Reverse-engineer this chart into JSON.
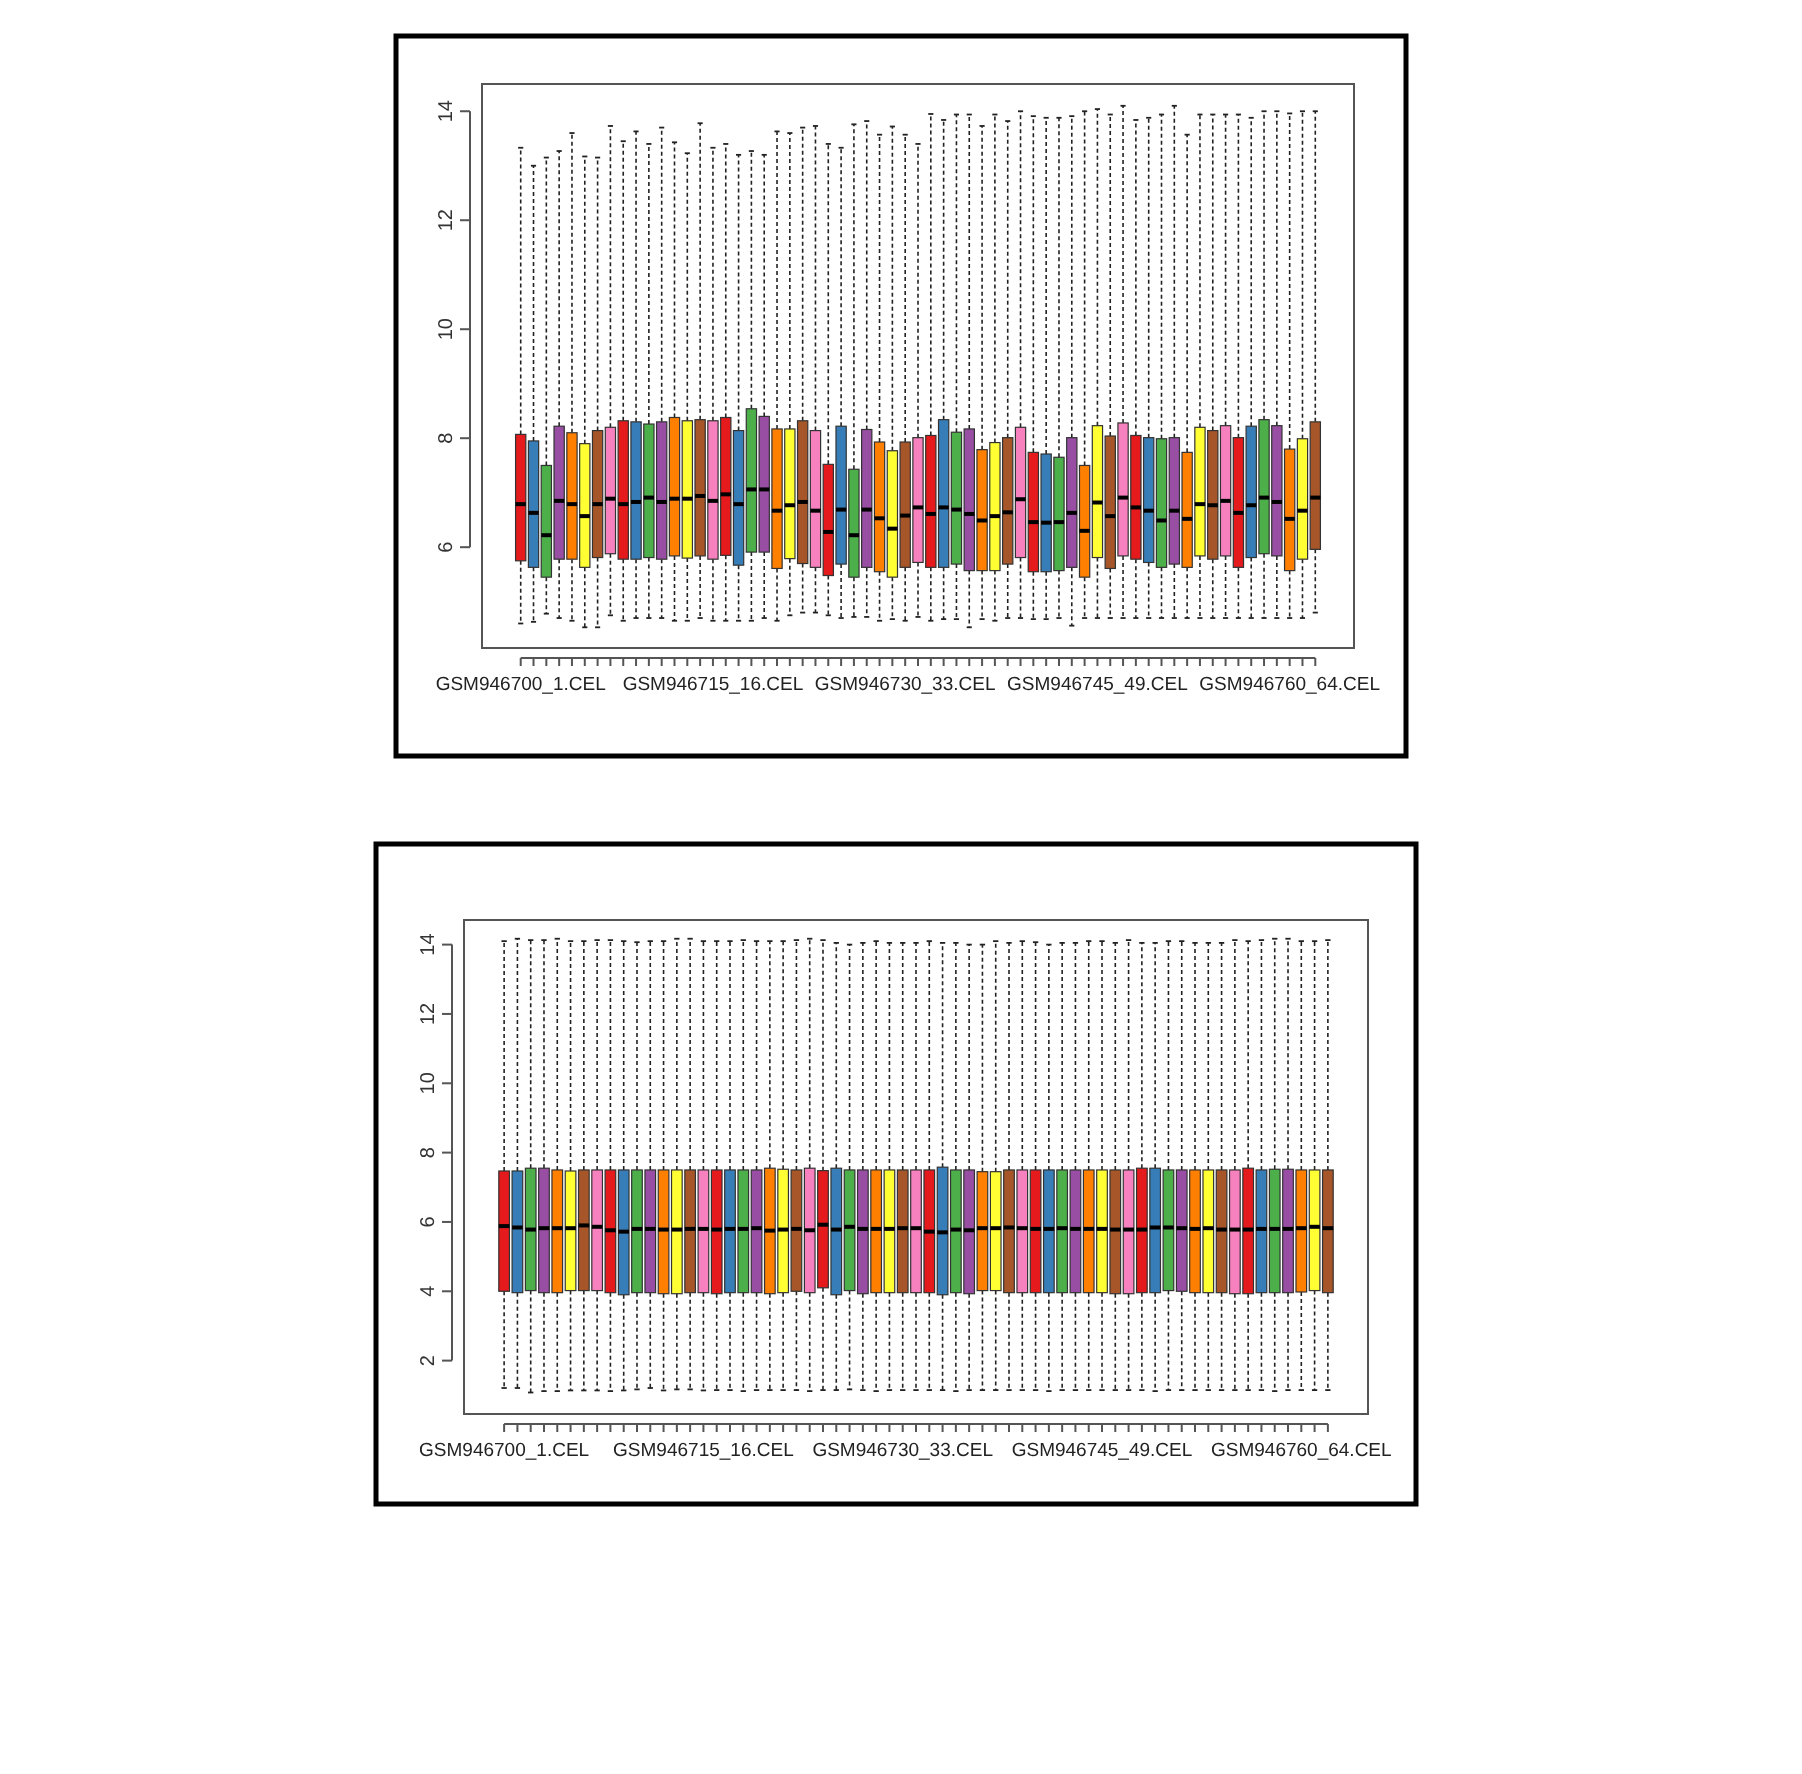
{
  "chart_data": [
    {
      "type": "box",
      "categories": [
        "GSM946700_1.CEL",
        null,
        null,
        null,
        null,
        null,
        null,
        null,
        null,
        null,
        null,
        null,
        null,
        null,
        null,
        "GSM946715_16.CEL",
        null,
        null,
        null,
        null,
        null,
        null,
        null,
        null,
        null,
        null,
        null,
        null,
        null,
        null,
        "GSM946730_33.CEL",
        null,
        null,
        null,
        null,
        null,
        null,
        null,
        null,
        null,
        null,
        null,
        null,
        null,
        null,
        "GSM946745_49.CEL",
        null,
        null,
        null,
        null,
        null,
        null,
        null,
        null,
        null,
        null,
        null,
        null,
        null,
        null,
        "GSM946760_64.CEL",
        null,
        null
      ],
      "colors": [
        "#e41a1c",
        "#377eb8",
        "#4daf4a",
        "#984ea3",
        "#ff7f00",
        "#ffff33",
        "#a65628",
        "#f781bf",
        "#e41a1c",
        "#377eb8",
        "#4daf4a",
        "#984ea3",
        "#ff7f00",
        "#ffff33",
        "#a65628",
        "#f781bf",
        "#e41a1c",
        "#377eb8",
        "#4daf4a",
        "#984ea3",
        "#ff7f00",
        "#ffff33",
        "#a65628",
        "#f781bf",
        "#e41a1c",
        "#377eb8",
        "#4daf4a",
        "#984ea3",
        "#ff7f00",
        "#ffff33",
        "#a65628",
        "#f781bf",
        "#e41a1c",
        "#377eb8",
        "#4daf4a",
        "#984ea3",
        "#ff7f00",
        "#ffff33",
        "#a65628",
        "#f781bf",
        "#e41a1c",
        "#377eb8",
        "#4daf4a",
        "#984ea3",
        "#ff7f00",
        "#ffff33",
        "#a65628",
        "#f781bf",
        "#e41a1c",
        "#377eb8",
        "#4daf4a",
        "#984ea3",
        "#ff7f00",
        "#ffff33",
        "#a65628",
        "#f781bf",
        "#e41a1c",
        "#377eb8",
        "#4daf4a",
        "#984ea3",
        "#ff7f00",
        "#ffff33",
        "#a65628"
      ],
      "boxes": [
        {
          "low": 4.6,
          "q1": 5.75,
          "median": 6.79,
          "q3": 8.07,
          "high": 13.33
        },
        {
          "low": 4.63,
          "q1": 5.63,
          "median": 6.63,
          "q3": 7.95,
          "high": 13.0
        },
        {
          "low": 4.78,
          "q1": 5.45,
          "median": 6.22,
          "q3": 7.5,
          "high": 13.15
        },
        {
          "low": 4.7,
          "q1": 5.78,
          "median": 6.85,
          "q3": 8.22,
          "high": 13.27
        },
        {
          "low": 4.65,
          "q1": 5.78,
          "median": 6.79,
          "q3": 8.1,
          "high": 13.6
        },
        {
          "low": 4.53,
          "q1": 5.63,
          "median": 6.57,
          "q3": 7.9,
          "high": 13.17
        },
        {
          "low": 4.53,
          "q1": 5.81,
          "median": 6.79,
          "q3": 8.14,
          "high": 13.15
        },
        {
          "low": 4.75,
          "q1": 5.88,
          "median": 6.89,
          "q3": 8.2,
          "high": 13.73
        },
        {
          "low": 4.65,
          "q1": 5.78,
          "median": 6.79,
          "q3": 8.32,
          "high": 13.45
        },
        {
          "low": 4.7,
          "q1": 5.78,
          "median": 6.83,
          "q3": 8.3,
          "high": 13.63
        },
        {
          "low": 4.7,
          "q1": 5.81,
          "median": 6.91,
          "q3": 8.26,
          "high": 13.4
        },
        {
          "low": 4.7,
          "q1": 5.78,
          "median": 6.83,
          "q3": 8.3,
          "high": 13.7
        },
        {
          "low": 4.65,
          "q1": 5.84,
          "median": 6.89,
          "q3": 8.38,
          "high": 13.43
        },
        {
          "low": 4.65,
          "q1": 5.8,
          "median": 6.89,
          "q3": 8.32,
          "high": 13.23
        },
        {
          "low": 4.7,
          "q1": 5.84,
          "median": 6.94,
          "q3": 8.34,
          "high": 13.78
        },
        {
          "low": 4.65,
          "q1": 5.78,
          "median": 6.85,
          "q3": 8.32,
          "high": 13.33
        },
        {
          "low": 4.65,
          "q1": 5.85,
          "median": 6.97,
          "q3": 8.38,
          "high": 13.4
        },
        {
          "low": 4.65,
          "q1": 5.67,
          "median": 6.79,
          "q3": 8.14,
          "high": 13.2
        },
        {
          "low": 4.65,
          "q1": 5.91,
          "median": 7.06,
          "q3": 8.54,
          "high": 13.27
        },
        {
          "low": 4.7,
          "q1": 5.91,
          "median": 7.06,
          "q3": 8.4,
          "high": 13.2
        },
        {
          "low": 4.65,
          "q1": 5.61,
          "median": 6.67,
          "q3": 8.17,
          "high": 13.63
        },
        {
          "low": 4.75,
          "q1": 5.79,
          "median": 6.77,
          "q3": 8.17,
          "high": 13.6
        },
        {
          "low": 4.8,
          "q1": 5.7,
          "median": 6.83,
          "q3": 8.32,
          "high": 13.7
        },
        {
          "low": 4.8,
          "q1": 5.63,
          "median": 6.67,
          "q3": 8.14,
          "high": 13.73
        },
        {
          "low": 4.75,
          "q1": 5.48,
          "median": 6.28,
          "q3": 7.52,
          "high": 13.4
        },
        {
          "low": 4.7,
          "q1": 5.69,
          "median": 6.69,
          "q3": 8.22,
          "high": 13.33
        },
        {
          "low": 4.72,
          "q1": 5.45,
          "median": 6.22,
          "q3": 7.43,
          "high": 13.76
        },
        {
          "low": 4.72,
          "q1": 5.63,
          "median": 6.69,
          "q3": 8.16,
          "high": 13.82
        },
        {
          "low": 4.65,
          "q1": 5.55,
          "median": 6.53,
          "q3": 7.93,
          "high": 13.57
        },
        {
          "low": 4.68,
          "q1": 5.45,
          "median": 6.34,
          "q3": 7.77,
          "high": 13.72
        },
        {
          "low": 4.65,
          "q1": 5.63,
          "median": 6.58,
          "q3": 7.93,
          "high": 13.57
        },
        {
          "low": 4.72,
          "q1": 5.72,
          "median": 6.73,
          "q3": 8.01,
          "high": 13.4
        },
        {
          "low": 4.65,
          "q1": 5.63,
          "median": 6.61,
          "q3": 8.05,
          "high": 13.95
        },
        {
          "low": 4.68,
          "q1": 5.63,
          "median": 6.73,
          "q3": 8.34,
          "high": 13.84
        },
        {
          "low": 4.68,
          "q1": 5.69,
          "median": 6.69,
          "q3": 8.11,
          "high": 13.94
        },
        {
          "low": 4.53,
          "q1": 5.57,
          "median": 6.61,
          "q3": 8.17,
          "high": 13.94
        },
        {
          "low": 4.68,
          "q1": 5.57,
          "median": 6.49,
          "q3": 7.79,
          "high": 13.73
        },
        {
          "low": 4.65,
          "q1": 5.57,
          "median": 6.57,
          "q3": 7.92,
          "high": 13.94
        },
        {
          "low": 4.7,
          "q1": 5.69,
          "median": 6.64,
          "q3": 8.01,
          "high": 13.82
        },
        {
          "low": 4.7,
          "q1": 5.81,
          "median": 6.88,
          "q3": 8.2,
          "high": 14.0
        },
        {
          "low": 4.68,
          "q1": 5.55,
          "median": 6.46,
          "q3": 7.74,
          "high": 13.91
        },
        {
          "low": 4.68,
          "q1": 5.55,
          "median": 6.45,
          "q3": 7.71,
          "high": 13.88
        },
        {
          "low": 4.7,
          "q1": 5.57,
          "median": 6.46,
          "q3": 7.65,
          "high": 13.88
        },
        {
          "low": 4.56,
          "q1": 5.63,
          "median": 6.63,
          "q3": 8.01,
          "high": 13.91
        },
        {
          "low": 4.7,
          "q1": 5.45,
          "median": 6.3,
          "q3": 7.5,
          "high": 14.0
        },
        {
          "low": 4.7,
          "q1": 5.81,
          "median": 6.82,
          "q3": 8.23,
          "high": 14.04
        },
        {
          "low": 4.7,
          "q1": 5.61,
          "median": 6.57,
          "q3": 8.04,
          "high": 13.94
        },
        {
          "low": 4.7,
          "q1": 5.84,
          "median": 6.91,
          "q3": 8.28,
          "high": 14.1
        },
        {
          "low": 4.7,
          "q1": 5.78,
          "median": 6.73,
          "q3": 8.05,
          "high": 13.84
        },
        {
          "low": 4.7,
          "q1": 5.72,
          "median": 6.67,
          "q3": 8.01,
          "high": 13.88
        },
        {
          "low": 4.7,
          "q1": 5.63,
          "median": 6.49,
          "q3": 7.99,
          "high": 13.94
        },
        {
          "low": 4.7,
          "q1": 5.69,
          "median": 6.67,
          "q3": 8.01,
          "high": 14.1
        },
        {
          "low": 4.7,
          "q1": 5.63,
          "median": 6.52,
          "q3": 7.74,
          "high": 13.57
        },
        {
          "low": 4.7,
          "q1": 5.84,
          "median": 6.79,
          "q3": 8.2,
          "high": 13.94
        },
        {
          "low": 4.7,
          "q1": 5.78,
          "median": 6.77,
          "q3": 8.14,
          "high": 13.94
        },
        {
          "low": 4.7,
          "q1": 5.84,
          "median": 6.85,
          "q3": 8.23,
          "high": 13.94
        },
        {
          "low": 4.7,
          "q1": 5.63,
          "median": 6.63,
          "q3": 8.01,
          "high": 13.94
        },
        {
          "low": 4.7,
          "q1": 5.81,
          "median": 6.77,
          "q3": 8.22,
          "high": 13.88
        },
        {
          "low": 4.7,
          "q1": 5.88,
          "median": 6.91,
          "q3": 8.34,
          "high": 14.0
        },
        {
          "low": 4.7,
          "q1": 5.84,
          "median": 6.83,
          "q3": 8.23,
          "high": 14.0
        },
        {
          "low": 4.7,
          "q1": 5.57,
          "median": 6.52,
          "q3": 7.8,
          "high": 13.96
        },
        {
          "low": 4.7,
          "q1": 5.78,
          "median": 6.67,
          "q3": 7.99,
          "high": 14.0
        },
        {
          "low": 4.8,
          "q1": 5.96,
          "median": 6.91,
          "q3": 8.3,
          "high": 14.0
        }
      ],
      "ylim": [
        4.15,
        14.5
      ],
      "yticks": [
        6,
        8,
        10,
        12,
        14
      ]
    },
    {
      "type": "box",
      "categories": [
        "GSM946700_1.CEL",
        null,
        null,
        null,
        null,
        null,
        null,
        null,
        null,
        null,
        null,
        null,
        null,
        null,
        null,
        "GSM946715_16.CEL",
        null,
        null,
        null,
        null,
        null,
        null,
        null,
        null,
        null,
        null,
        null,
        null,
        null,
        null,
        "GSM946730_33.CEL",
        null,
        null,
        null,
        null,
        null,
        null,
        null,
        null,
        null,
        null,
        null,
        null,
        null,
        null,
        "GSM946745_49.CEL",
        null,
        null,
        null,
        null,
        null,
        null,
        null,
        null,
        null,
        null,
        null,
        null,
        null,
        null,
        "GSM946760_64.CEL",
        null,
        null
      ],
      "colors": [
        "#e41a1c",
        "#377eb8",
        "#4daf4a",
        "#984ea3",
        "#ff7f00",
        "#ffff33",
        "#a65628",
        "#f781bf",
        "#e41a1c",
        "#377eb8",
        "#4daf4a",
        "#984ea3",
        "#ff7f00",
        "#ffff33",
        "#a65628",
        "#f781bf",
        "#e41a1c",
        "#377eb8",
        "#4daf4a",
        "#984ea3",
        "#ff7f00",
        "#ffff33",
        "#a65628",
        "#f781bf",
        "#e41a1c",
        "#377eb8",
        "#4daf4a",
        "#984ea3",
        "#ff7f00",
        "#ffff33",
        "#a65628",
        "#f781bf",
        "#e41a1c",
        "#377eb8",
        "#4daf4a",
        "#984ea3",
        "#ff7f00",
        "#ffff33",
        "#a65628",
        "#f781bf",
        "#e41a1c",
        "#377eb8",
        "#4daf4a",
        "#984ea3",
        "#ff7f00",
        "#ffff33",
        "#a65628",
        "#f781bf",
        "#e41a1c",
        "#377eb8",
        "#4daf4a",
        "#984ea3",
        "#ff7f00",
        "#ffff33",
        "#a65628",
        "#f781bf",
        "#e41a1c",
        "#377eb8",
        "#4daf4a",
        "#984ea3",
        "#ff7f00",
        "#ffff33",
        "#a65628"
      ],
      "boxes": [
        {
          "low": 1.21,
          "q1": 4.0,
          "median": 5.88,
          "q3": 7.47,
          "high": 14.1
        },
        {
          "low": 1.21,
          "q1": 3.96,
          "median": 5.84,
          "q3": 7.47,
          "high": 14.17
        },
        {
          "low": 1.08,
          "q1": 4.02,
          "median": 5.78,
          "q3": 7.55,
          "high": 14.13
        },
        {
          "low": 1.12,
          "q1": 3.96,
          "median": 5.82,
          "q3": 7.55,
          "high": 14.13
        },
        {
          "low": 1.12,
          "q1": 3.96,
          "median": 5.82,
          "q3": 7.5,
          "high": 14.17
        },
        {
          "low": 1.14,
          "q1": 4.02,
          "median": 5.82,
          "q3": 7.47,
          "high": 14.1
        },
        {
          "low": 1.14,
          "q1": 4.02,
          "median": 5.9,
          "q3": 7.5,
          "high": 14.1
        },
        {
          "low": 1.14,
          "q1": 4.02,
          "median": 5.86,
          "q3": 7.5,
          "high": 14.13
        },
        {
          "low": 1.12,
          "q1": 3.96,
          "median": 5.76,
          "q3": 7.5,
          "high": 14.13
        },
        {
          "low": 1.14,
          "q1": 3.9,
          "median": 5.72,
          "q3": 7.5,
          "high": 14.1
        },
        {
          "low": 1.17,
          "q1": 3.96,
          "median": 5.8,
          "q3": 7.5,
          "high": 14.07
        },
        {
          "low": 1.21,
          "q1": 3.96,
          "median": 5.8,
          "q3": 7.5,
          "high": 14.1
        },
        {
          "low": 1.14,
          "q1": 3.93,
          "median": 5.78,
          "q3": 7.5,
          "high": 14.1
        },
        {
          "low": 1.17,
          "q1": 3.93,
          "median": 5.78,
          "q3": 7.5,
          "high": 14.17
        },
        {
          "low": 1.17,
          "q1": 3.96,
          "median": 5.8,
          "q3": 7.5,
          "high": 14.17
        },
        {
          "low": 1.14,
          "q1": 3.96,
          "median": 5.8,
          "q3": 7.5,
          "high": 14.1
        },
        {
          "low": 1.15,
          "q1": 3.93,
          "median": 5.78,
          "q3": 7.5,
          "high": 14.1
        },
        {
          "low": 1.15,
          "q1": 3.96,
          "median": 5.8,
          "q3": 7.5,
          "high": 14.1
        },
        {
          "low": 1.12,
          "q1": 3.96,
          "median": 5.8,
          "q3": 7.5,
          "high": 14.13
        },
        {
          "low": 1.15,
          "q1": 3.96,
          "median": 5.82,
          "q3": 7.5,
          "high": 14.1
        },
        {
          "low": 1.15,
          "q1": 3.93,
          "median": 5.75,
          "q3": 7.55,
          "high": 14.1
        },
        {
          "low": 1.15,
          "q1": 3.96,
          "median": 5.78,
          "q3": 7.52,
          "high": 14.1
        },
        {
          "low": 1.15,
          "q1": 4.0,
          "median": 5.8,
          "q3": 7.5,
          "high": 14.13
        },
        {
          "low": 1.12,
          "q1": 3.96,
          "median": 5.76,
          "q3": 7.55,
          "high": 14.17
        },
        {
          "low": 1.15,
          "q1": 4.1,
          "median": 5.92,
          "q3": 7.48,
          "high": 14.13
        },
        {
          "low": 1.15,
          "q1": 3.9,
          "median": 5.78,
          "q3": 7.55,
          "high": 14.05
        },
        {
          "low": 1.17,
          "q1": 4.02,
          "median": 5.86,
          "q3": 7.5,
          "high": 14.0
        },
        {
          "low": 1.15,
          "q1": 3.93,
          "median": 5.8,
          "q3": 7.5,
          "high": 14.05
        },
        {
          "low": 1.12,
          "q1": 3.96,
          "median": 5.8,
          "q3": 7.5,
          "high": 14.1
        },
        {
          "low": 1.15,
          "q1": 3.96,
          "median": 5.8,
          "q3": 7.5,
          "high": 14.05
        },
        {
          "low": 1.15,
          "q1": 3.96,
          "median": 5.82,
          "q3": 7.5,
          "high": 14.05
        },
        {
          "low": 1.15,
          "q1": 3.96,
          "median": 5.82,
          "q3": 7.5,
          "high": 14.05
        },
        {
          "low": 1.15,
          "q1": 3.96,
          "median": 5.72,
          "q3": 7.5,
          "high": 14.1
        },
        {
          "low": 1.15,
          "q1": 3.9,
          "median": 5.7,
          "q3": 7.58,
          "high": 14.05
        },
        {
          "low": 1.12,
          "q1": 3.96,
          "median": 5.78,
          "q3": 7.5,
          "high": 14.05
        },
        {
          "low": 1.15,
          "q1": 3.93,
          "median": 5.76,
          "q3": 7.5,
          "high": 14.0
        },
        {
          "low": 1.15,
          "q1": 4.02,
          "median": 5.82,
          "q3": 7.45,
          "high": 14.0
        },
        {
          "low": 1.15,
          "q1": 4.02,
          "median": 5.82,
          "q3": 7.45,
          "high": 14.1
        },
        {
          "low": 1.15,
          "q1": 3.96,
          "median": 5.84,
          "q3": 7.5,
          "high": 14.05
        },
        {
          "low": 1.15,
          "q1": 3.96,
          "median": 5.82,
          "q3": 7.5,
          "high": 14.1
        },
        {
          "low": 1.15,
          "q1": 3.96,
          "median": 5.8,
          "q3": 7.5,
          "high": 14.07
        },
        {
          "low": 1.12,
          "q1": 3.96,
          "median": 5.8,
          "q3": 7.5,
          "high": 14.0
        },
        {
          "low": 1.15,
          "q1": 3.96,
          "median": 5.82,
          "q3": 7.5,
          "high": 14.05
        },
        {
          "low": 1.15,
          "q1": 3.96,
          "median": 5.8,
          "q3": 7.5,
          "high": 14.05
        },
        {
          "low": 1.15,
          "q1": 3.96,
          "median": 5.8,
          "q3": 7.5,
          "high": 14.1
        },
        {
          "low": 1.15,
          "q1": 3.96,
          "median": 5.8,
          "q3": 7.5,
          "high": 14.1
        },
        {
          "low": 1.15,
          "q1": 3.93,
          "median": 5.78,
          "q3": 7.5,
          "high": 14.05
        },
        {
          "low": 1.15,
          "q1": 3.93,
          "median": 5.78,
          "q3": 7.5,
          "high": 14.13
        },
        {
          "low": 1.15,
          "q1": 3.96,
          "median": 5.78,
          "q3": 7.55,
          "high": 14.05
        },
        {
          "low": 1.12,
          "q1": 3.96,
          "median": 5.84,
          "q3": 7.55,
          "high": 14.05
        },
        {
          "low": 1.15,
          "q1": 4.02,
          "median": 5.84,
          "q3": 7.5,
          "high": 14.1
        },
        {
          "low": 1.15,
          "q1": 4.0,
          "median": 5.82,
          "q3": 7.5,
          "high": 14.1
        },
        {
          "low": 1.15,
          "q1": 3.96,
          "median": 5.8,
          "q3": 7.5,
          "high": 14.05
        },
        {
          "low": 1.15,
          "q1": 3.96,
          "median": 5.82,
          "q3": 7.5,
          "high": 14.05
        },
        {
          "low": 1.15,
          "q1": 3.96,
          "median": 5.78,
          "q3": 7.5,
          "high": 14.05
        },
        {
          "low": 1.15,
          "q1": 3.93,
          "median": 5.78,
          "q3": 7.5,
          "high": 14.13
        },
        {
          "low": 1.15,
          "q1": 3.93,
          "median": 5.78,
          "q3": 7.55,
          "high": 14.1
        },
        {
          "low": 1.15,
          "q1": 3.96,
          "median": 5.8,
          "q3": 7.5,
          "high": 14.13
        },
        {
          "low": 1.12,
          "q1": 3.96,
          "median": 5.8,
          "q3": 7.52,
          "high": 14.17
        },
        {
          "low": 1.15,
          "q1": 3.96,
          "median": 5.8,
          "q3": 7.52,
          "high": 14.17
        },
        {
          "low": 1.15,
          "q1": 3.98,
          "median": 5.82,
          "q3": 7.5,
          "high": 14.1
        },
        {
          "low": 1.15,
          "q1": 4.02,
          "median": 5.86,
          "q3": 7.5,
          "high": 14.1
        },
        {
          "low": 1.15,
          "q1": 3.96,
          "median": 5.82,
          "q3": 7.5,
          "high": 14.13
        }
      ],
      "ylim": [
        0.46,
        14.71
      ],
      "yticks": [
        2,
        4,
        6,
        8,
        10,
        12,
        14
      ]
    }
  ]
}
